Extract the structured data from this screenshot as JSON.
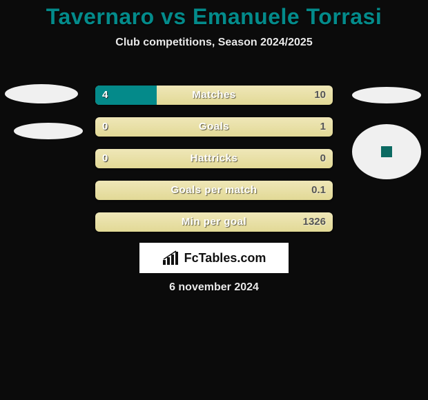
{
  "header": {
    "title": "Tavernaro vs Emanuele Torrasi",
    "subtitle": "Club competitions, Season 2024/2025",
    "title_color": "#038b8b"
  },
  "stats_panel": {
    "track_background": "#e2d996",
    "fill_color": "#048a8a",
    "rows": [
      {
        "label": "Matches",
        "left": "4",
        "right": "10",
        "fill_pct": 26
      },
      {
        "label": "Goals",
        "left": "0",
        "right": "1",
        "fill_pct": 0
      },
      {
        "label": "Hattricks",
        "left": "0",
        "right": "0",
        "fill_pct": 0
      },
      {
        "label": "Goals per match",
        "left": "",
        "right": "0.1",
        "fill_pct": 0
      },
      {
        "label": "Min per goal",
        "left": "",
        "right": "1326",
        "fill_pct": 0
      }
    ]
  },
  "brand": {
    "text": "FcTables.com"
  },
  "footer": {
    "date": "6 november 2024"
  }
}
